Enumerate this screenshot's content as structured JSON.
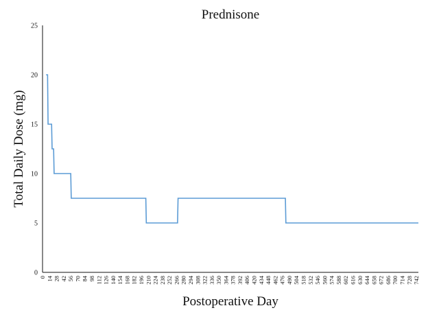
{
  "chart_data": {
    "type": "line",
    "title": "Prednisone",
    "xlabel": "Postoperative Day",
    "ylabel": "Total Daily Dose (mg)",
    "xlim": [
      0,
      746
    ],
    "ylim": [
      0,
      25
    ],
    "grid": false,
    "x_ticks": [
      0,
      14,
      28,
      42,
      56,
      70,
      84,
      98,
      112,
      126,
      140,
      154,
      168,
      182,
      196,
      210,
      224,
      238,
      252,
      266,
      280,
      294,
      308,
      322,
      336,
      350,
      364,
      378,
      392,
      406,
      420,
      434,
      448,
      462,
      476,
      490,
      504,
      518,
      532,
      546,
      560,
      574,
      588,
      602,
      616,
      630,
      644,
      658,
      672,
      686,
      700,
      714,
      728,
      742
    ],
    "y_ticks": [
      0,
      5,
      10,
      15,
      20,
      25
    ],
    "series": [
      {
        "color": "#5b9bd5",
        "x": [
          7,
          10,
          11,
          18,
          19,
          22,
          23,
          56,
          57,
          205,
          206,
          268,
          269,
          482,
          483,
          746
        ],
        "y": [
          20,
          20,
          15,
          15,
          12.5,
          12.5,
          10,
          10,
          7.5,
          7.5,
          5,
          5,
          7.5,
          7.5,
          5,
          5
        ]
      }
    ]
  }
}
